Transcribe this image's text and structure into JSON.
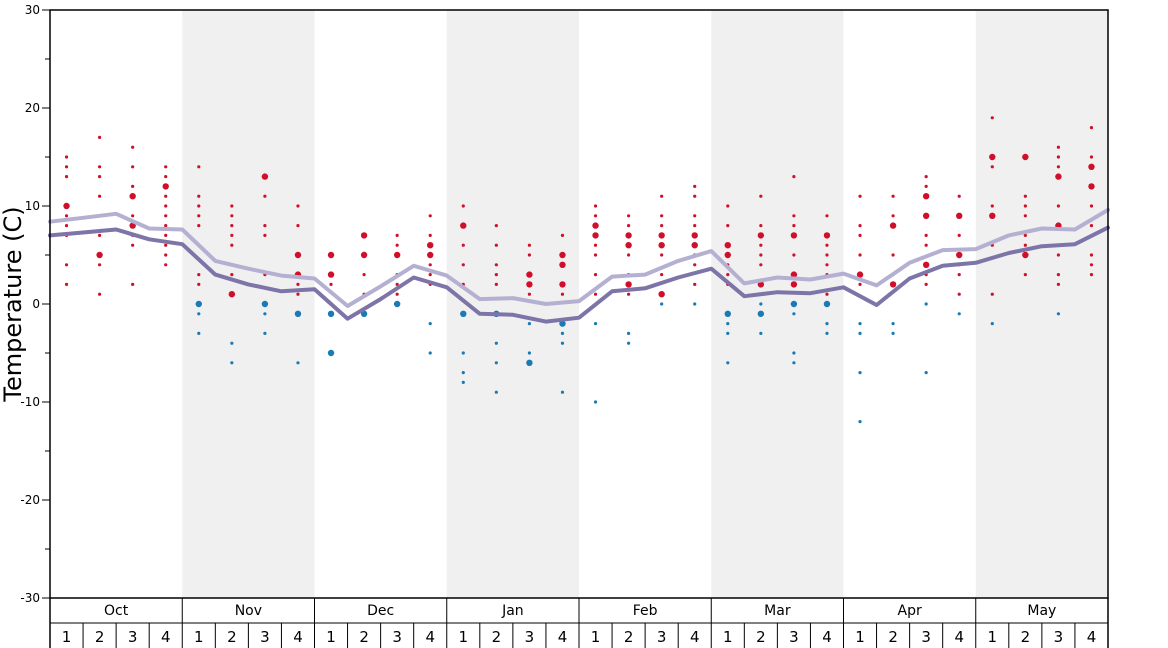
{
  "chart_data": {
    "type": "line",
    "ylabel": "Temperature (C)",
    "ylim": [
      -30,
      30
    ],
    "yticks": [
      30,
      20,
      10,
      0,
      -10,
      -20,
      -30
    ],
    "months": [
      "Oct",
      "Nov",
      "Dec",
      "Jan",
      "Feb",
      "Mar",
      "Apr",
      "May"
    ],
    "weeks": [
      "1",
      "2",
      "3",
      "4"
    ],
    "series": [
      {
        "color": "#b4b0d2",
        "values": [
          8.4,
          8.8,
          9.2,
          7.7,
          7.6,
          4.4,
          3.6,
          2.9,
          2.6,
          -0.2,
          1.8,
          3.9,
          2.9,
          0.5,
          0.6,
          0.0,
          0.3,
          2.8,
          3.0,
          4.4,
          5.4,
          2.1,
          2.7,
          2.5,
          3.1,
          1.9,
          4.2,
          5.5,
          5.6,
          7.0,
          7.7,
          7.6,
          9.6
        ]
      },
      {
        "color": "#7d74a8",
        "values": [
          7.0,
          7.3,
          7.6,
          6.6,
          6.1,
          3.0,
          2.0,
          1.3,
          1.5,
          -1.5,
          0.5,
          2.7,
          1.7,
          -1.0,
          -1.1,
          -1.8,
          -1.4,
          1.3,
          1.6,
          2.7,
          3.6,
          0.8,
          1.2,
          1.1,
          1.7,
          -0.1,
          2.6,
          3.9,
          4.2,
          5.2,
          5.9,
          6.1,
          7.8
        ]
      }
    ],
    "point_colors": {
      "warm": "#d0102a",
      "cold": "#1a7ab5"
    },
    "observations": [
      {
        "week": 0,
        "temps": [
          15,
          14,
          13,
          10,
          9,
          8,
          7,
          4,
          2
        ],
        "sizes": [
          1,
          1,
          1,
          2,
          1,
          1,
          1,
          1,
          1
        ]
      },
      {
        "week": 1,
        "temps": [
          17,
          14,
          13,
          11,
          9,
          7,
          5,
          4,
          1
        ],
        "sizes": [
          1,
          1,
          1,
          1,
          1,
          1,
          2,
          1,
          1
        ]
      },
      {
        "week": 2,
        "temps": [
          16,
          14,
          12,
          11,
          9,
          8,
          7,
          6,
          2
        ],
        "sizes": [
          1,
          1,
          1,
          2,
          1,
          2,
          1,
          1,
          1
        ]
      },
      {
        "week": 3,
        "temps": [
          14,
          13,
          12,
          11,
          10,
          9,
          8,
          7,
          6,
          5,
          4
        ],
        "sizes": [
          1,
          1,
          2,
          1,
          1,
          1,
          1,
          1,
          1,
          1,
          1
        ]
      },
      {
        "week": 4,
        "temps": [
          14,
          11,
          10,
          9,
          8,
          6,
          3,
          2,
          0,
          -1,
          -3
        ],
        "sizes": [
          1,
          1,
          1,
          1,
          1,
          1,
          1,
          1,
          2,
          1,
          1
        ]
      },
      {
        "week": 5,
        "temps": [
          10,
          9,
          8,
          7,
          6,
          4,
          3,
          1,
          -4,
          -6
        ],
        "sizes": [
          1,
          1,
          1,
          1,
          1,
          1,
          1,
          2,
          1,
          1
        ]
      },
      {
        "week": 6,
        "temps": [
          13,
          11,
          8,
          7,
          3,
          0,
          -1,
          -3
        ],
        "sizes": [
          2,
          1,
          1,
          1,
          1,
          2,
          1,
          1
        ]
      },
      {
        "week": 7,
        "temps": [
          10,
          8,
          5,
          3,
          2,
          1,
          -1,
          -6
        ],
        "sizes": [
          1,
          1,
          2,
          2,
          1,
          1,
          2,
          1
        ]
      },
      {
        "week": 8,
        "temps": [
          5,
          3,
          2,
          -1,
          -5
        ],
        "sizes": [
          2,
          2,
          1,
          2,
          2
        ]
      },
      {
        "week": 9,
        "temps": [
          7,
          5,
          3,
          1,
          -1
        ],
        "sizes": [
          2,
          2,
          1,
          1,
          2
        ]
      },
      {
        "week": 10,
        "temps": [
          7,
          6,
          5,
          3,
          2,
          1,
          0
        ],
        "sizes": [
          1,
          1,
          2,
          1,
          1,
          1,
          2
        ]
      },
      {
        "week": 11,
        "temps": [
          9,
          7,
          6,
          5,
          4,
          3,
          2,
          -2,
          -5
        ],
        "sizes": [
          1,
          1,
          2,
          2,
          1,
          1,
          1,
          1,
          1
        ]
      },
      {
        "week": 12,
        "temps": [
          10,
          8,
          6,
          4,
          2,
          -1,
          -5,
          -7,
          -8
        ],
        "sizes": [
          1,
          2,
          1,
          1,
          1,
          2,
          1,
          1,
          1
        ]
      },
      {
        "week": 13,
        "temps": [
          8,
          6,
          4,
          3,
          2,
          -1,
          -4,
          -6,
          -9
        ],
        "sizes": [
          1,
          1,
          1,
          1,
          1,
          2,
          1,
          1,
          1
        ]
      },
      {
        "week": 14,
        "temps": [
          6,
          5,
          3,
          2,
          1,
          -2,
          -5,
          -6
        ],
        "sizes": [
          1,
          1,
          2,
          2,
          1,
          1,
          1,
          2
        ]
      },
      {
        "week": 15,
        "temps": [
          7,
          5,
          4,
          2,
          1,
          -2,
          -3,
          -4,
          -9
        ],
        "sizes": [
          1,
          2,
          2,
          2,
          1,
          2,
          1,
          1,
          1
        ]
      },
      {
        "week": 16,
        "temps": [
          10,
          9,
          8,
          7,
          6,
          5,
          3,
          1,
          -2,
          -10
        ],
        "sizes": [
          1,
          1,
          2,
          2,
          1,
          1,
          1,
          1,
          1,
          1
        ]
      },
      {
        "week": 17,
        "temps": [
          9,
          8,
          7,
          6,
          5,
          3,
          2,
          1,
          -3,
          -4
        ],
        "sizes": [
          1,
          1,
          2,
          2,
          1,
          1,
          2,
          1,
          1,
          1
        ]
      },
      {
        "week": 18,
        "temps": [
          11,
          9,
          8,
          7,
          6,
          5,
          3,
          1,
          0
        ],
        "sizes": [
          1,
          1,
          1,
          2,
          2,
          1,
          1,
          2,
          1
        ]
      },
      {
        "week": 19,
        "temps": [
          12,
          11,
          9,
          8,
          7,
          6,
          5,
          4,
          2,
          0
        ],
        "sizes": [
          1,
          1,
          1,
          1,
          2,
          2,
          1,
          1,
          1,
          1
        ]
      },
      {
        "week": 20,
        "temps": [
          10,
          8,
          6,
          5,
          4,
          3,
          2,
          -1,
          -2,
          -3,
          -6
        ],
        "sizes": [
          1,
          1,
          2,
          2,
          1,
          1,
          1,
          2,
          1,
          1,
          1
        ]
      },
      {
        "week": 21,
        "temps": [
          11,
          8,
          7,
          6,
          5,
          4,
          2,
          0,
          -1,
          -3
        ],
        "sizes": [
          1,
          1,
          2,
          1,
          1,
          1,
          2,
          1,
          2,
          1
        ]
      },
      {
        "week": 22,
        "temps": [
          13,
          9,
          8,
          7,
          5,
          3,
          2,
          0,
          -1,
          -5,
          -6
        ],
        "sizes": [
          1,
          1,
          1,
          2,
          1,
          2,
          2,
          2,
          1,
          1,
          1
        ]
      },
      {
        "week": 23,
        "temps": [
          9,
          7,
          6,
          5,
          4,
          3,
          1,
          0,
          -2,
          -3
        ],
        "sizes": [
          1,
          2,
          1,
          1,
          1,
          1,
          1,
          2,
          1,
          1
        ]
      },
      {
        "week": 24,
        "temps": [
          11,
          8,
          7,
          5,
          3,
          2,
          -2,
          -3,
          -7,
          -12
        ],
        "sizes": [
          1,
          1,
          1,
          1,
          2,
          1,
          1,
          1,
          1,
          1
        ]
      },
      {
        "week": 25,
        "temps": [
          11,
          9,
          8,
          5,
          3,
          2,
          -2,
          -3
        ],
        "sizes": [
          1,
          1,
          2,
          1,
          1,
          2,
          1,
          1
        ]
      },
      {
        "week": 26,
        "temps": [
          13,
          12,
          11,
          9,
          7,
          6,
          4,
          3,
          2,
          0,
          -7
        ],
        "sizes": [
          1,
          1,
          2,
          2,
          1,
          1,
          2,
          1,
          1,
          1,
          1
        ]
      },
      {
        "week": 27,
        "temps": [
          11,
          9,
          7,
          5,
          4,
          3,
          1,
          -1
        ],
        "sizes": [
          1,
          2,
          1,
          2,
          1,
          1,
          1,
          1
        ]
      },
      {
        "week": 28,
        "temps": [
          19,
          15,
          14,
          10,
          9,
          6,
          1,
          -2
        ],
        "sizes": [
          1,
          2,
          1,
          1,
          2,
          1,
          1,
          1
        ]
      },
      {
        "week": 29,
        "temps": [
          15,
          11,
          10,
          9,
          7,
          6,
          5,
          3
        ],
        "sizes": [
          2,
          1,
          1,
          1,
          1,
          1,
          2,
          1
        ]
      },
      {
        "week": 30,
        "temps": [
          16,
          15,
          14,
          13,
          10,
          8,
          5,
          3,
          2,
          -1
        ],
        "sizes": [
          1,
          1,
          1,
          2,
          1,
          2,
          1,
          1,
          1,
          1
        ]
      },
      {
        "week": 31,
        "temps": [
          18,
          15,
          14,
          12,
          10,
          8,
          5,
          4,
          3
        ],
        "sizes": [
          1,
          1,
          2,
          2,
          1,
          1,
          1,
          1,
          1
        ]
      }
    ]
  }
}
